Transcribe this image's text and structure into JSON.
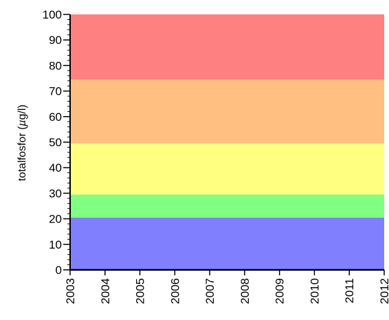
{
  "chart_data": {
    "type": "area",
    "title": "",
    "ylabel": "totalfosfor (",
    "ylabel_mu": "µ",
    "ylabel_unit": "g/l)",
    "xlabel": "",
    "xlim": [
      2003,
      2012
    ],
    "ylim": [
      0,
      100
    ],
    "x_ticks": [
      "2003",
      "2004",
      "2005",
      "2006",
      "2007",
      "2008",
      "2009",
      "2010",
      "2011",
      "2012"
    ],
    "y_ticks": [
      "0",
      "10",
      "20",
      "30",
      "40",
      "50",
      "60",
      "70",
      "80",
      "90",
      "100"
    ],
    "y_minor_step": 2,
    "grid": false,
    "legend": "none",
    "bands": [
      {
        "from": 0,
        "to": 20.5,
        "color": "#8080ff"
      },
      {
        "from": 20.5,
        "to": 29.5,
        "color": "#80ff80"
      },
      {
        "from": 29.5,
        "to": 49.5,
        "color": "#ffff80"
      },
      {
        "from": 49.5,
        "to": 74.5,
        "color": "#ffbf80"
      },
      {
        "from": 74.5,
        "to": 100,
        "color": "#ff8080"
      }
    ]
  }
}
